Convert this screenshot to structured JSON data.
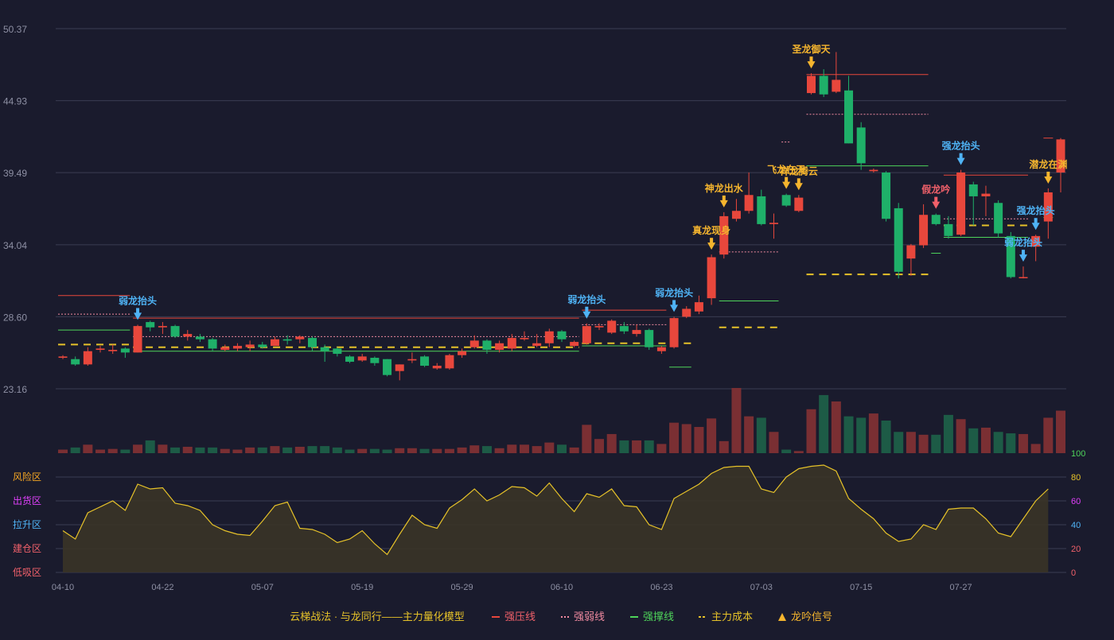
{
  "colors": {
    "background": "#1a1b2d",
    "grid": "#3a3c52",
    "up": "#e8473c",
    "down": "#1fb069",
    "vol_up": "#7a2f33",
    "vol_down": "#1d5b46",
    "resistance": "#e8473c",
    "weak": "#f08aa0",
    "support": "#4ed35a",
    "cost": "#e6c229",
    "signal_gold": "#f5b52e",
    "signal_blue": "#4fb3f5",
    "signal_red": "#f0606a",
    "osc_line": "#e6c229",
    "osc_fill": "#3a3427",
    "axis_text": "#8e90a4"
  },
  "chart_data": {
    "type": "candlestick",
    "price_axis": {
      "ticks": [
        "50.37",
        "44.93",
        "39.49",
        "34.04",
        "28.60",
        "23.16"
      ],
      "range": [
        23.16,
        50.37
      ]
    },
    "x_ticks": [
      {
        "index": 0,
        "label": "04-10"
      },
      {
        "index": 8,
        "label": "04-22"
      },
      {
        "index": 16,
        "label": "05-07"
      },
      {
        "index": 24,
        "label": "05-19"
      },
      {
        "index": 32,
        "label": "05-29"
      },
      {
        "index": 40,
        "label": "06-10"
      },
      {
        "index": 48,
        "label": "06-23"
      },
      {
        "index": 56,
        "label": "07-03"
      },
      {
        "index": 64,
        "label": "07-15"
      },
      {
        "index": 72,
        "label": "07-27"
      }
    ],
    "candles": [
      [
        25.5,
        25.6,
        25.7,
        25.4,
        5
      ],
      [
        25.4,
        25.0,
        25.6,
        24.9,
        8
      ],
      [
        25.0,
        26.0,
        26.3,
        24.9,
        12
      ],
      [
        26.1,
        26.2,
        26.4,
        25.9,
        5
      ],
      [
        26.0,
        26.1,
        26.5,
        25.8,
        6
      ],
      [
        26.2,
        25.9,
        26.3,
        25.5,
        5
      ],
      [
        25.9,
        27.9,
        28.0,
        25.9,
        12
      ],
      [
        28.2,
        27.8,
        28.3,
        27.5,
        18
      ],
      [
        27.8,
        27.9,
        28.2,
        27.3,
        12
      ],
      [
        27.9,
        27.1,
        28.0,
        27.0,
        8
      ],
      [
        27.1,
        27.3,
        27.6,
        26.8,
        9
      ],
      [
        27.1,
        26.9,
        27.3,
        26.7,
        8
      ],
      [
        26.9,
        26.2,
        27.0,
        26.0,
        8
      ],
      [
        26.1,
        26.3,
        26.5,
        26.0,
        6
      ],
      [
        26.2,
        26.4,
        26.6,
        26.0,
        5
      ],
      [
        26.3,
        26.5,
        26.8,
        26.0,
        8
      ],
      [
        26.5,
        26.3,
        26.7,
        26.2,
        8
      ],
      [
        26.4,
        26.9,
        27.1,
        26.4,
        10
      ],
      [
        26.9,
        26.8,
        27.2,
        26.5,
        8
      ],
      [
        26.9,
        27.1,
        27.2,
        26.6,
        9
      ],
      [
        27.0,
        26.3,
        27.1,
        26.0,
        10
      ],
      [
        26.3,
        26.0,
        26.5,
        25.2,
        10
      ],
      [
        26.2,
        25.8,
        26.3,
        25.6,
        8
      ],
      [
        25.6,
        25.2,
        25.7,
        25.1,
        5
      ],
      [
        25.3,
        25.6,
        25.8,
        25.2,
        6
      ],
      [
        25.5,
        25.1,
        25.6,
        24.9,
        6
      ],
      [
        25.4,
        24.2,
        25.4,
        24.1,
        5
      ],
      [
        24.5,
        25.0,
        25.0,
        23.8,
        7
      ],
      [
        25.3,
        25.4,
        25.9,
        25.1,
        7
      ],
      [
        25.6,
        24.9,
        25.7,
        24.8,
        6
      ],
      [
        24.7,
        24.9,
        25.1,
        24.6,
        6
      ],
      [
        24.7,
        25.7,
        25.8,
        24.6,
        6
      ],
      [
        25.7,
        26.0,
        26.2,
        25.5,
        8
      ],
      [
        26.3,
        26.8,
        27.2,
        26.2,
        11
      ],
      [
        26.8,
        26.1,
        26.9,
        25.8,
        10
      ],
      [
        26.1,
        26.6,
        26.8,
        25.9,
        7
      ],
      [
        26.2,
        27.0,
        27.3,
        26.0,
        12
      ],
      [
        26.9,
        27.0,
        27.5,
        26.8,
        12
      ],
      [
        26.4,
        26.6,
        27.3,
        26.3,
        10
      ],
      [
        26.6,
        27.5,
        27.7,
        26.3,
        15
      ],
      [
        27.5,
        26.9,
        27.6,
        26.7,
        12
      ],
      [
        26.4,
        26.7,
        26.8,
        26.3,
        8
      ],
      [
        26.6,
        27.9,
        28.1,
        26.5,
        40
      ],
      [
        27.8,
        27.9,
        28.1,
        27.6,
        20
      ],
      [
        27.4,
        28.3,
        28.4,
        27.3,
        27
      ],
      [
        27.9,
        27.5,
        28.2,
        27.3,
        18
      ],
      [
        27.3,
        27.6,
        28.0,
        27.1,
        18
      ],
      [
        27.6,
        26.3,
        27.7,
        26.1,
        18
      ],
      [
        26.0,
        26.3,
        26.4,
        25.8,
        13
      ],
      [
        26.3,
        28.5,
        28.6,
        26.2,
        43
      ],
      [
        28.6,
        29.2,
        29.4,
        28.5,
        41
      ],
      [
        29.0,
        29.7,
        30.2,
        28.8,
        37
      ],
      [
        30.0,
        33.1,
        33.3,
        29.5,
        49
      ],
      [
        33.3,
        36.2,
        36.5,
        33.0,
        17
      ],
      [
        36.0,
        36.6,
        37.5,
        35.8,
        92
      ],
      [
        36.6,
        37.8,
        39.5,
        36.4,
        52
      ],
      [
        37.7,
        35.6,
        38.2,
        35.5,
        50
      ],
      [
        35.6,
        35.7,
        36.4,
        34.5,
        30
      ],
      [
        37.8,
        37.0,
        37.9,
        36.9,
        5
      ],
      [
        36.6,
        37.6,
        37.8,
        36.5,
        3
      ],
      [
        45.5,
        46.8,
        47.0,
        45.4,
        62
      ],
      [
        46.8,
        45.4,
        47.3,
        45.2,
        82
      ],
      [
        45.6,
        46.5,
        48.6,
        45.5,
        73
      ],
      [
        45.7,
        41.7,
        46.8,
        41.7,
        52
      ],
      [
        42.9,
        40.2,
        43.3,
        39.7,
        50
      ],
      [
        39.6,
        39.7,
        39.8,
        39.5,
        56
      ],
      [
        39.5,
        36.0,
        39.6,
        35.8,
        46
      ],
      [
        36.8,
        32.0,
        37.2,
        31.5,
        30
      ],
      [
        33.0,
        34.0,
        34.1,
        31.7,
        30
      ],
      [
        34.0,
        36.3,
        37.1,
        33.8,
        26
      ],
      [
        36.3,
        35.6,
        36.4,
        35.5,
        26
      ],
      [
        35.6,
        34.7,
        36.2,
        34.5,
        54
      ],
      [
        34.8,
        39.5,
        39.7,
        34.7,
        48
      ],
      [
        38.6,
        37.7,
        38.8,
        35.5,
        35
      ],
      [
        37.7,
        37.9,
        38.5,
        36.2,
        36
      ],
      [
        37.2,
        34.9,
        37.4,
        34.6,
        30
      ],
      [
        34.7,
        31.6,
        35.0,
        31.5,
        28
      ],
      [
        31.6,
        31.6,
        32.4,
        31.5,
        27
      ],
      [
        33.9,
        34.7,
        34.8,
        32.8,
        13
      ],
      [
        35.8,
        38.0,
        38.3,
        34.5,
        50
      ],
      [
        39.5,
        42.0,
        42.1,
        38.0,
        60
      ]
    ],
    "oscillator": {
      "range": [
        0,
        100
      ],
      "right_ticks": [
        "100",
        "80",
        "60",
        "40",
        "20",
        "0"
      ],
      "zones": [
        "风险区",
        "出货区",
        "拉升区",
        "建仓区",
        "低吸区"
      ],
      "values": [
        35,
        28,
        50,
        55,
        60,
        52,
        74,
        70,
        71,
        58,
        56,
        52,
        40,
        35,
        32,
        31,
        43,
        56,
        59,
        37,
        36,
        32,
        25,
        28,
        35,
        24,
        15,
        32,
        48,
        40,
        37,
        54,
        61,
        70,
        60,
        65,
        72,
        71,
        64,
        75,
        62,
        51,
        66,
        63,
        70,
        56,
        55,
        40,
        36,
        62,
        68,
        74,
        83,
        88,
        89,
        89,
        70,
        67,
        80,
        87,
        89,
        90,
        85,
        62,
        53,
        45,
        33,
        26,
        28,
        40,
        36,
        53,
        54,
        54,
        45,
        33,
        30,
        45,
        60,
        70
      ]
    },
    "lines": [
      {
        "type": "resistance",
        "y": 30.2,
        "from": 0,
        "to": 5
      },
      {
        "type": "resistance",
        "y": 28.5,
        "from": 6,
        "to": 41
      },
      {
        "type": "resistance",
        "y": 29.1,
        "from": 42,
        "to": 48
      },
      {
        "type": "resistance",
        "y": 46.9,
        "from": 60,
        "to": 69
      },
      {
        "type": "resistance",
        "y": 39.3,
        "from": 71,
        "to": 77
      },
      {
        "type": "resistance",
        "y": 42.1,
        "from": 79,
        "to": 79
      },
      {
        "type": "weak",
        "y": 28.8,
        "from": 0,
        "to": 5
      },
      {
        "type": "weak",
        "y": 27.1,
        "from": 6,
        "to": 41
      },
      {
        "type": "weak",
        "y": 28.0,
        "from": 42,
        "to": 48
      },
      {
        "type": "weak",
        "y": 33.5,
        "from": 53,
        "to": 57
      },
      {
        "type": "weak",
        "y": 41.8,
        "from": 58,
        "to": 58
      },
      {
        "type": "weak",
        "y": 43.9,
        "from": 60,
        "to": 69
      },
      {
        "type": "weak",
        "y": 36.0,
        "from": 71,
        "to": 77
      },
      {
        "type": "support",
        "y": 27.6,
        "from": 0,
        "to": 5
      },
      {
        "type": "support",
        "y": 26.0,
        "from": 6,
        "to": 41
      },
      {
        "type": "support",
        "y": 26.4,
        "from": 42,
        "to": 48
      },
      {
        "type": "support",
        "y": 24.8,
        "from": 49,
        "to": 50
      },
      {
        "type": "support",
        "y": 29.8,
        "from": 53,
        "to": 57
      },
      {
        "type": "support",
        "y": 40.0,
        "from": 60,
        "to": 69
      },
      {
        "type": "support",
        "y": 33.4,
        "from": 70,
        "to": 70
      },
      {
        "type": "support",
        "y": 34.6,
        "from": 71,
        "to": 77
      },
      {
        "type": "support",
        "y": 36.1,
        "from": 79,
        "to": 79
      },
      {
        "type": "cost",
        "y": 26.5,
        "from": 0,
        "to": 5
      },
      {
        "type": "cost",
        "y": 26.3,
        "from": 6,
        "to": 41
      },
      {
        "type": "cost",
        "y": 26.6,
        "from": 42,
        "to": 50
      },
      {
        "type": "cost",
        "y": 27.8,
        "from": 53,
        "to": 57
      },
      {
        "type": "cost",
        "y": 31.8,
        "from": 60,
        "to": 69
      },
      {
        "type": "cost",
        "y": 35.5,
        "from": 71,
        "to": 77
      },
      {
        "type": "cost",
        "y": 36.4,
        "from": 79,
        "to": 79
      }
    ],
    "signals": [
      {
        "index": 6,
        "text": "弱龙抬头",
        "color": "blue"
      },
      {
        "index": 42,
        "text": "弱龙抬头",
        "color": "blue"
      },
      {
        "index": 49,
        "text": "弱龙抬头",
        "color": "blue"
      },
      {
        "index": 52,
        "text": "真龙现身",
        "color": "gold"
      },
      {
        "index": 53,
        "text": "神龙出水",
        "color": "gold"
      },
      {
        "index": 58,
        "text": "飞龙在天",
        "color": "gold"
      },
      {
        "index": 60,
        "text": "圣龙御天",
        "color": "gold"
      },
      {
        "index": 59,
        "text": "祥龙腾云",
        "color": "gold"
      },
      {
        "index": 70,
        "text": "假龙吟",
        "color": "red"
      },
      {
        "index": 72,
        "text": "强龙抬头",
        "color": "blue"
      },
      {
        "index": 77,
        "text": "弱龙抬头",
        "color": "blue"
      },
      {
        "index": 78,
        "text": "强龙抬头",
        "color": "blue"
      },
      {
        "index": 79,
        "text": "潜龙在渊",
        "color": "gold"
      }
    ]
  },
  "legend": {
    "title": "云梯战法 · 与龙同行——主力量化模型",
    "items": [
      {
        "label": "强压线",
        "style": "solid",
        "color": "#e8473c",
        "text_color": "#f0606a"
      },
      {
        "label": "强弱线",
        "style": "dotted",
        "color": "#f08aa0",
        "text_color": "#f08aa0"
      },
      {
        "label": "强撑线",
        "style": "solid",
        "color": "#4ed35a",
        "text_color": "#4ed35a"
      },
      {
        "label": "主力成本",
        "style": "dashed",
        "color": "#e6c229",
        "text_color": "#e6c229"
      },
      {
        "label": "龙吟信号",
        "style": "triangle",
        "color": "#f5b52e",
        "text_color": "#f5b52e"
      }
    ]
  }
}
